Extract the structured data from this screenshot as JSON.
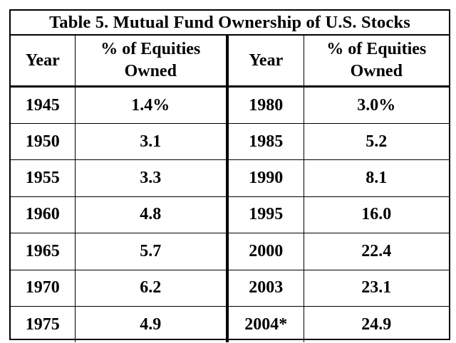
{
  "title": "Table 5. Mutual Fund Ownership of U.S. Stocks",
  "headers": {
    "year": "Year",
    "pct_line1": "% of Equities",
    "pct_line2": "Owned"
  },
  "rows": [
    {
      "year_left": "1945",
      "pct_left": "1.4%",
      "year_right": "1980",
      "pct_right": "3.0%"
    },
    {
      "year_left": "1950",
      "pct_left": "3.1",
      "year_right": "1985",
      "pct_right": "5.2"
    },
    {
      "year_left": "1955",
      "pct_left": "3.3",
      "year_right": "1990",
      "pct_right": "8.1"
    },
    {
      "year_left": "1960",
      "pct_left": "4.8",
      "year_right": "1995",
      "pct_right": "16.0"
    },
    {
      "year_left": "1965",
      "pct_left": "5.7",
      "year_right": "2000",
      "pct_right": "22.4"
    },
    {
      "year_left": "1970",
      "pct_left": "6.2",
      "year_right": "2003",
      "pct_right": "23.1"
    },
    {
      "year_left": "1975",
      "pct_left": "4.9",
      "year_right": "2004*",
      "pct_right": "24.9"
    }
  ]
}
